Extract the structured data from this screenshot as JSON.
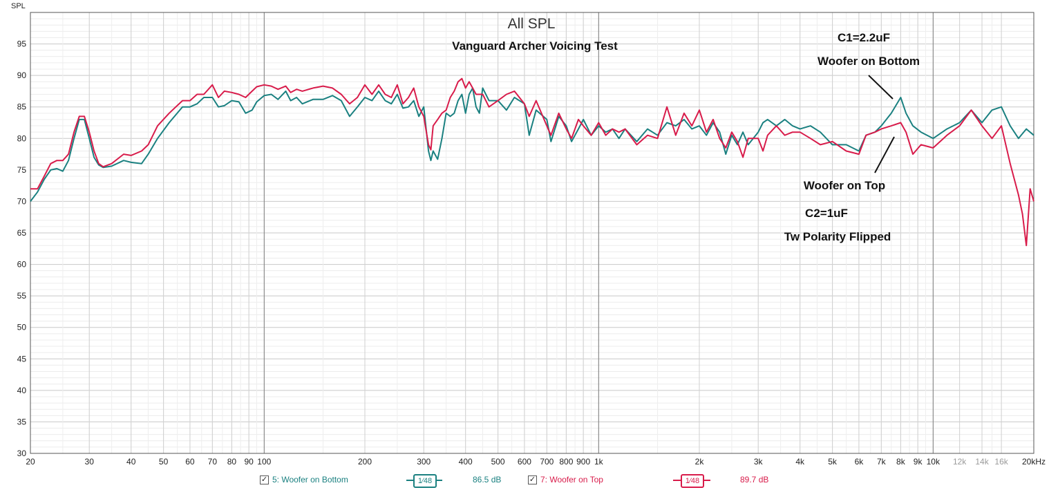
{
  "chart_data": {
    "type": "line",
    "title": "All SPL",
    "subtitle": "Vanguard Archer Voicing Test",
    "ylabel": "SPL",
    "xlabel": "",
    "x_scale": "log",
    "xlim": [
      20,
      20000
    ],
    "ylim": [
      30,
      100
    ],
    "grid": true,
    "x_ticks": [
      {
        "v": 20,
        "label": "20"
      },
      {
        "v": 30,
        "label": "30"
      },
      {
        "v": 40,
        "label": "40"
      },
      {
        "v": 50,
        "label": "50"
      },
      {
        "v": 60,
        "label": "60"
      },
      {
        "v": 70,
        "label": "70"
      },
      {
        "v": 80,
        "label": "80"
      },
      {
        "v": 90,
        "label": "90"
      },
      {
        "v": 100,
        "label": "100"
      },
      {
        "v": 200,
        "label": "200"
      },
      {
        "v": 300,
        "label": "300"
      },
      {
        "v": 400,
        "label": "400"
      },
      {
        "v": 500,
        "label": "500"
      },
      {
        "v": 600,
        "label": "600"
      },
      {
        "v": 700,
        "label": "700"
      },
      {
        "v": 800,
        "label": "800"
      },
      {
        "v": 900,
        "label": "900"
      },
      {
        "v": 1000,
        "label": "1k"
      },
      {
        "v": 2000,
        "label": "2k"
      },
      {
        "v": 3000,
        "label": "3k"
      },
      {
        "v": 4000,
        "label": "4k"
      },
      {
        "v": 5000,
        "label": "5k"
      },
      {
        "v": 6000,
        "label": "6k"
      },
      {
        "v": 7000,
        "label": "7k"
      },
      {
        "v": 8000,
        "label": "8k"
      },
      {
        "v": 9000,
        "label": "9k"
      },
      {
        "v": 10000,
        "label": "10k"
      },
      {
        "v": 12000,
        "label": "12k",
        "dim": true
      },
      {
        "v": 14000,
        "label": "14k",
        "dim": true
      },
      {
        "v": 16000,
        "label": "16k",
        "dim": true
      },
      {
        "v": 20000,
        "label": "20kHz"
      }
    ],
    "y_ticks": [
      30,
      35,
      40,
      45,
      50,
      55,
      60,
      65,
      70,
      75,
      80,
      85,
      90,
      95
    ],
    "annotations": [
      {
        "text": "C1=2.2uF"
      },
      {
        "text": "Woofer on Bottom"
      },
      {
        "text": "Woofer on Top"
      },
      {
        "text": "C2=1uF"
      },
      {
        "text": "Tw Polarity Flipped"
      }
    ],
    "series": [
      {
        "name": "5: Woofer on Bottom",
        "color": "#1a8080",
        "points": [
          [
            20,
            70
          ],
          [
            21,
            71.5
          ],
          [
            22,
            73.5
          ],
          [
            23,
            75
          ],
          [
            24,
            75.2
          ],
          [
            25,
            74.8
          ],
          [
            26,
            76.5
          ],
          [
            27,
            80
          ],
          [
            28,
            83
          ],
          [
            29,
            83
          ],
          [
            30,
            80
          ],
          [
            31,
            77
          ],
          [
            32,
            75.8
          ],
          [
            33,
            75.4
          ],
          [
            35,
            75.6
          ],
          [
            38,
            76.5
          ],
          [
            40,
            76.2
          ],
          [
            43,
            76
          ],
          [
            45,
            77.5
          ],
          [
            48,
            80
          ],
          [
            52,
            82.5
          ],
          [
            57,
            85
          ],
          [
            60,
            85
          ],
          [
            63,
            85.5
          ],
          [
            66,
            86.5
          ],
          [
            70,
            86.5
          ],
          [
            73,
            85
          ],
          [
            76,
            85.2
          ],
          [
            80,
            86
          ],
          [
            84,
            85.8
          ],
          [
            88,
            84
          ],
          [
            92,
            84.5
          ],
          [
            95,
            85.8
          ],
          [
            100,
            86.8
          ],
          [
            105,
            87
          ],
          [
            110,
            86.2
          ],
          [
            116,
            87.5
          ],
          [
            120,
            86
          ],
          [
            125,
            86.5
          ],
          [
            130,
            85.5
          ],
          [
            140,
            86.2
          ],
          [
            150,
            86.2
          ],
          [
            160,
            86.8
          ],
          [
            170,
            86
          ],
          [
            180,
            83.5
          ],
          [
            190,
            85
          ],
          [
            200,
            86.5
          ],
          [
            210,
            86
          ],
          [
            220,
            87.5
          ],
          [
            230,
            86
          ],
          [
            240,
            85.5
          ],
          [
            250,
            87
          ],
          [
            260,
            84.8
          ],
          [
            270,
            85
          ],
          [
            280,
            86
          ],
          [
            290,
            83.5
          ],
          [
            300,
            85
          ],
          [
            310,
            78
          ],
          [
            315,
            76.5
          ],
          [
            320,
            78
          ],
          [
            330,
            76.7
          ],
          [
            340,
            80
          ],
          [
            350,
            84
          ],
          [
            360,
            83.5
          ],
          [
            370,
            84
          ],
          [
            380,
            86
          ],
          [
            390,
            87
          ],
          [
            400,
            84
          ],
          [
            410,
            87
          ],
          [
            420,
            88
          ],
          [
            430,
            85
          ],
          [
            440,
            84
          ],
          [
            450,
            88
          ],
          [
            470,
            86
          ],
          [
            500,
            86
          ],
          [
            530,
            84.5
          ],
          [
            560,
            86.5
          ],
          [
            600,
            85.5
          ],
          [
            620,
            80.5
          ],
          [
            650,
            84.5
          ],
          [
            700,
            83
          ],
          [
            720,
            79.5
          ],
          [
            760,
            83.5
          ],
          [
            800,
            82
          ],
          [
            830,
            79.5
          ],
          [
            870,
            81.5
          ],
          [
            900,
            83
          ],
          [
            950,
            80.5
          ],
          [
            1000,
            82
          ],
          [
            1050,
            81
          ],
          [
            1100,
            81.5
          ],
          [
            1150,
            80
          ],
          [
            1200,
            81.5
          ],
          [
            1300,
            79.5
          ],
          [
            1400,
            81.5
          ],
          [
            1500,
            80.5
          ],
          [
            1600,
            82.5
          ],
          [
            1700,
            82
          ],
          [
            1800,
            83
          ],
          [
            1900,
            81.5
          ],
          [
            2000,
            82
          ],
          [
            2100,
            80.5
          ],
          [
            2200,
            82.5
          ],
          [
            2300,
            81
          ],
          [
            2400,
            77.5
          ],
          [
            2500,
            80.5
          ],
          [
            2600,
            79
          ],
          [
            2700,
            81
          ],
          [
            2800,
            79
          ],
          [
            3000,
            81
          ],
          [
            3100,
            82.5
          ],
          [
            3200,
            83
          ],
          [
            3400,
            82
          ],
          [
            3600,
            83
          ],
          [
            3800,
            82
          ],
          [
            4000,
            81.5
          ],
          [
            4300,
            82
          ],
          [
            4600,
            81
          ],
          [
            5000,
            79
          ],
          [
            5500,
            79
          ],
          [
            6000,
            78
          ],
          [
            6300,
            80.5
          ],
          [
            6700,
            81
          ],
          [
            7000,
            82
          ],
          [
            7500,
            84
          ],
          [
            8000,
            86.5
          ],
          [
            8300,
            84
          ],
          [
            8700,
            82
          ],
          [
            9200,
            81
          ],
          [
            10000,
            80
          ],
          [
            11000,
            81.5
          ],
          [
            12000,
            82.5
          ],
          [
            13000,
            84.5
          ],
          [
            14000,
            82.5
          ],
          [
            15000,
            84.5
          ],
          [
            16000,
            85
          ],
          [
            17000,
            82
          ],
          [
            18000,
            80
          ],
          [
            19000,
            81.5
          ],
          [
            20000,
            80.5
          ]
        ]
      },
      {
        "name": "7: Woofer on Top",
        "color": "#d81b4a",
        "points": [
          [
            20,
            72
          ],
          [
            21,
            72
          ],
          [
            22,
            74
          ],
          [
            23,
            76
          ],
          [
            24,
            76.5
          ],
          [
            25,
            76.5
          ],
          [
            26,
            77.5
          ],
          [
            27,
            81
          ],
          [
            28,
            83.5
          ],
          [
            29,
            83.5
          ],
          [
            30,
            81
          ],
          [
            31,
            78
          ],
          [
            32,
            76
          ],
          [
            33,
            75.5
          ],
          [
            35,
            76
          ],
          [
            38,
            77.5
          ],
          [
            40,
            77.3
          ],
          [
            43,
            78
          ],
          [
            45,
            79
          ],
          [
            48,
            82
          ],
          [
            52,
            84
          ],
          [
            57,
            86
          ],
          [
            60,
            86
          ],
          [
            63,
            87
          ],
          [
            66,
            87
          ],
          [
            70,
            88.5
          ],
          [
            73,
            86.5
          ],
          [
            76,
            87.5
          ],
          [
            80,
            87.3
          ],
          [
            84,
            87
          ],
          [
            88,
            86.5
          ],
          [
            92,
            87.5
          ],
          [
            95,
            88.2
          ],
          [
            100,
            88.5
          ],
          [
            105,
            88.3
          ],
          [
            110,
            87.8
          ],
          [
            116,
            88.3
          ],
          [
            120,
            87.3
          ],
          [
            125,
            87.8
          ],
          [
            130,
            87.5
          ],
          [
            140,
            88
          ],
          [
            150,
            88.3
          ],
          [
            160,
            88
          ],
          [
            170,
            87
          ],
          [
            180,
            85.5
          ],
          [
            190,
            86.5
          ],
          [
            200,
            88.5
          ],
          [
            210,
            87
          ],
          [
            220,
            88.5
          ],
          [
            230,
            87
          ],
          [
            240,
            86.5
          ],
          [
            250,
            88.5
          ],
          [
            260,
            85.5
          ],
          [
            270,
            86.5
          ],
          [
            280,
            88
          ],
          [
            290,
            85
          ],
          [
            300,
            83.5
          ],
          [
            310,
            79
          ],
          [
            315,
            78.2
          ],
          [
            320,
            82
          ],
          [
            330,
            83
          ],
          [
            340,
            84
          ],
          [
            350,
            84.5
          ],
          [
            360,
            86.5
          ],
          [
            370,
            87.5
          ],
          [
            380,
            89
          ],
          [
            390,
            89.5
          ],
          [
            400,
            88
          ],
          [
            410,
            89
          ],
          [
            420,
            88
          ],
          [
            430,
            87
          ],
          [
            450,
            87
          ],
          [
            470,
            85
          ],
          [
            500,
            86
          ],
          [
            530,
            87
          ],
          [
            560,
            87.5
          ],
          [
            600,
            85.5
          ],
          [
            620,
            83.5
          ],
          [
            650,
            86
          ],
          [
            700,
            82
          ],
          [
            720,
            80.5
          ],
          [
            760,
            84
          ],
          [
            800,
            81.5
          ],
          [
            830,
            80
          ],
          [
            870,
            83
          ],
          [
            900,
            82
          ],
          [
            950,
            80.5
          ],
          [
            1000,
            82.5
          ],
          [
            1050,
            80.5
          ],
          [
            1100,
            81.5
          ],
          [
            1150,
            81
          ],
          [
            1200,
            81.5
          ],
          [
            1300,
            79
          ],
          [
            1400,
            80.5
          ],
          [
            1500,
            80
          ],
          [
            1600,
            85
          ],
          [
            1700,
            80.5
          ],
          [
            1800,
            84
          ],
          [
            1900,
            82
          ],
          [
            2000,
            84.5
          ],
          [
            2100,
            81
          ],
          [
            2200,
            83
          ],
          [
            2300,
            80
          ],
          [
            2400,
            78.5
          ],
          [
            2500,
            81
          ],
          [
            2600,
            79.5
          ],
          [
            2700,
            77
          ],
          [
            2800,
            80
          ],
          [
            3000,
            80
          ],
          [
            3100,
            78
          ],
          [
            3200,
            80.5
          ],
          [
            3400,
            82
          ],
          [
            3600,
            80.5
          ],
          [
            3800,
            81
          ],
          [
            4000,
            81
          ],
          [
            4300,
            80
          ],
          [
            4600,
            79
          ],
          [
            5000,
            79.5
          ],
          [
            5500,
            78
          ],
          [
            6000,
            77.5
          ],
          [
            6300,
            80.5
          ],
          [
            6700,
            81
          ],
          [
            7000,
            81.5
          ],
          [
            7500,
            82
          ],
          [
            8000,
            82.5
          ],
          [
            8300,
            81
          ],
          [
            8700,
            77.5
          ],
          [
            9200,
            79
          ],
          [
            10000,
            78.5
          ],
          [
            11000,
            80.5
          ],
          [
            12000,
            82
          ],
          [
            13000,
            84.5
          ],
          [
            14000,
            82
          ],
          [
            15000,
            80
          ],
          [
            16000,
            82
          ],
          [
            17000,
            76
          ],
          [
            18000,
            71
          ],
          [
            18500,
            68
          ],
          [
            19000,
            63
          ],
          [
            19500,
            72
          ],
          [
            20000,
            70
          ]
        ]
      }
    ]
  },
  "legend": {
    "items": [
      {
        "checkbox": "✓",
        "label": "5: Woofer on Bottom",
        "smoothing": "1⁄48",
        "value": "86.5 dB",
        "color": "#1a8080"
      },
      {
        "checkbox": "✓",
        "label": "7: Woofer on Top",
        "smoothing": "1⁄48",
        "value": "89.7 dB",
        "color": "#d81b4a"
      }
    ]
  }
}
